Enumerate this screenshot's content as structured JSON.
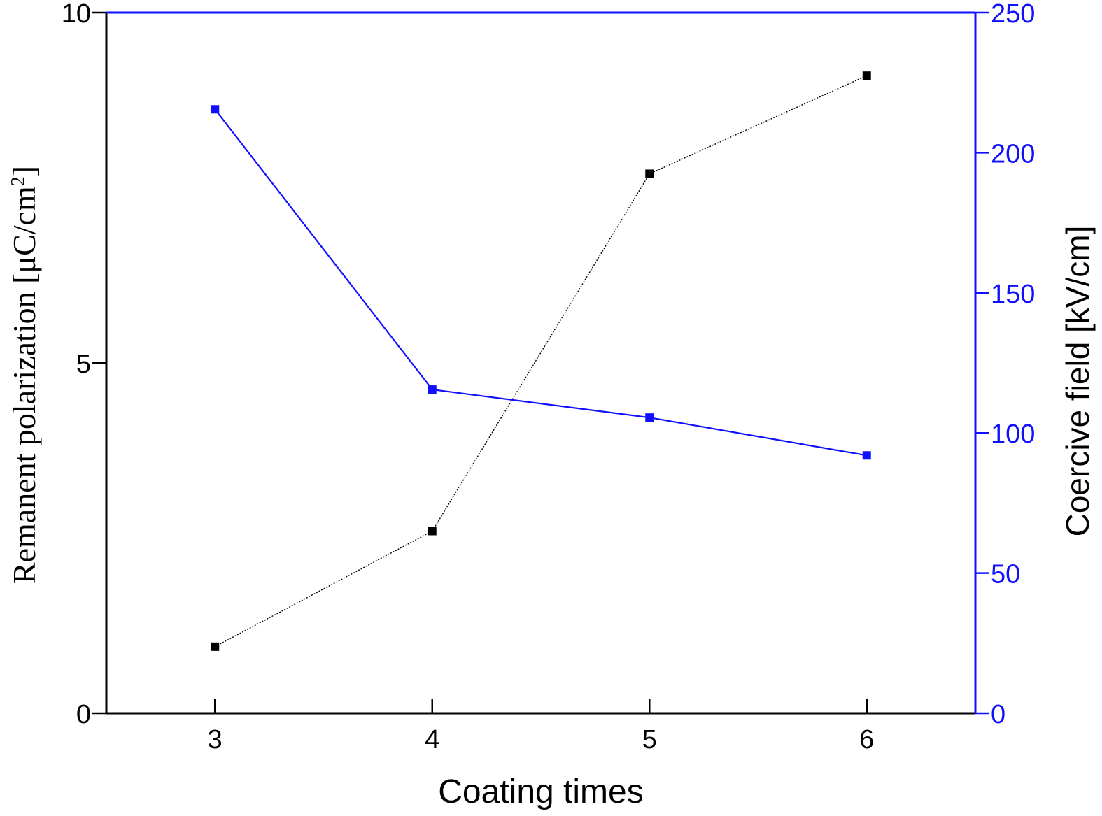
{
  "colors": {
    "left_axis": "#000000",
    "right_axis": "#1010ff",
    "series_remanent": "#000000",
    "series_coercive": "#1010ff"
  },
  "chart_data": {
    "type": "line",
    "x": [
      3,
      4,
      5,
      6
    ],
    "xlabel": "Coating times",
    "xlim": [
      2.5,
      6.5
    ],
    "xticks": [
      "3",
      "4",
      "5",
      "6"
    ],
    "ylabel": "Remanent polarization [μC/cm",
    "ylabel_superscript": "2",
    "ylabel_close": "]",
    "ylim": [
      0,
      10
    ],
    "yticks": [
      "0",
      "5",
      "10"
    ],
    "y2label": "Coercive field [kV/cm]",
    "y2lim": [
      0,
      250
    ],
    "y2ticks": [
      "0",
      "50",
      "100",
      "150",
      "200",
      "250"
    ],
    "grid": false,
    "series": [
      {
        "axis": "left",
        "marker": "square",
        "line_style": "dotted",
        "color": "#000000",
        "values": [
          0.95,
          2.6,
          7.7,
          9.1
        ]
      },
      {
        "axis": "right",
        "marker": "square",
        "line_style": "solid",
        "color": "#1010ff",
        "values": [
          215.5,
          115.5,
          105.5,
          92
        ]
      }
    ]
  }
}
